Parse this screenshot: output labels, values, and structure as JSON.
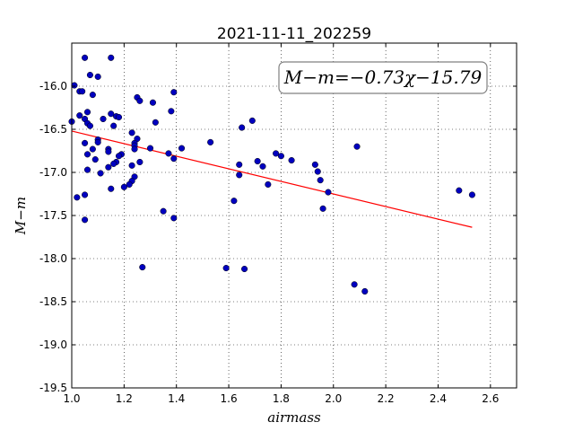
{
  "chart_data": {
    "type": "scatter",
    "title": "2021-11-11_202259",
    "xlabel": "airmass",
    "ylabel": "M−m",
    "xlim": [
      1.0,
      2.7
    ],
    "ylim": [
      -19.5,
      -15.5
    ],
    "y_inverted": true,
    "grid": true,
    "x_ticks": [
      "1.0",
      "1.2",
      "1.4",
      "1.6",
      "1.8",
      "2.0",
      "2.2",
      "2.4",
      "2.6"
    ],
    "y_ticks": [
      "-16.0",
      "-16.5",
      "-17.0",
      "-17.5",
      "-18.0",
      "-18.5",
      "-19.0",
      "-19.5"
    ],
    "point_color": "#0000bf",
    "line_color": "#ff0000",
    "annotation": "M−m=−0.73χ−15.79",
    "fit": {
      "slope": -0.73,
      "intercept": -15.79,
      "x_range": [
        1.0,
        2.53
      ]
    },
    "points": [
      [
        1.05,
        -15.67
      ],
      [
        1.15,
        -15.67
      ],
      [
        1.07,
        -15.87
      ],
      [
        1.1,
        -15.89
      ],
      [
        1.01,
        -15.99
      ],
      [
        1.03,
        -16.06
      ],
      [
        1.04,
        -16.06
      ],
      [
        1.08,
        -16.1
      ],
      [
        1.39,
        -16.07
      ],
      [
        1.25,
        -16.13
      ],
      [
        1.26,
        -16.17
      ],
      [
        1.31,
        -16.19
      ],
      [
        1.38,
        -16.29
      ],
      [
        1.06,
        -16.3
      ],
      [
        1.15,
        -16.32
      ],
      [
        1.03,
        -16.34
      ],
      [
        1.17,
        -16.35
      ],
      [
        1.18,
        -16.36
      ],
      [
        1.12,
        -16.38
      ],
      [
        1.69,
        -16.4
      ],
      [
        1.0,
        -16.41
      ],
      [
        1.05,
        -16.38
      ],
      [
        1.06,
        -16.43
      ],
      [
        1.07,
        -16.46
      ],
      [
        1.32,
        -16.42
      ],
      [
        1.16,
        -16.46
      ],
      [
        1.65,
        -16.48
      ],
      [
        1.23,
        -16.54
      ],
      [
        1.1,
        -16.62
      ],
      [
        1.1,
        -16.65
      ],
      [
        1.05,
        -16.66
      ],
      [
        1.25,
        -16.61
      ],
      [
        1.24,
        -16.66
      ],
      [
        1.24,
        -16.69
      ],
      [
        1.3,
        -16.72
      ],
      [
        1.42,
        -16.72
      ],
      [
        1.53,
        -16.65
      ],
      [
        2.09,
        -16.7
      ],
      [
        1.08,
        -16.73
      ],
      [
        1.14,
        -16.73
      ],
      [
        1.14,
        -16.76
      ],
      [
        1.24,
        -16.73
      ],
      [
        1.06,
        -16.79
      ],
      [
        1.19,
        -16.79
      ],
      [
        1.18,
        -16.81
      ],
      [
        1.37,
        -16.78
      ],
      [
        1.39,
        -16.84
      ],
      [
        1.09,
        -16.85
      ],
      [
        1.26,
        -16.88
      ],
      [
        1.17,
        -16.88
      ],
      [
        1.16,
        -16.9
      ],
      [
        1.23,
        -16.92
      ],
      [
        1.14,
        -16.94
      ],
      [
        1.71,
        -16.87
      ],
      [
        1.73,
        -16.93
      ],
      [
        1.64,
        -16.91
      ],
      [
        1.78,
        -16.78
      ],
      [
        1.8,
        -16.81
      ],
      [
        1.84,
        -16.86
      ],
      [
        1.93,
        -16.91
      ],
      [
        1.06,
        -16.97
      ],
      [
        1.11,
        -17.01
      ],
      [
        1.24,
        -17.05
      ],
      [
        1.64,
        -17.03
      ],
      [
        1.94,
        -16.99
      ],
      [
        1.95,
        -17.09
      ],
      [
        1.23,
        -17.1
      ],
      [
        1.22,
        -17.14
      ],
      [
        1.75,
        -17.14
      ],
      [
        1.15,
        -17.19
      ],
      [
        1.2,
        -17.17
      ],
      [
        1.98,
        -17.23
      ],
      [
        2.48,
        -17.21
      ],
      [
        2.53,
        -17.26
      ],
      [
        1.05,
        -17.26
      ],
      [
        1.02,
        -17.29
      ],
      [
        1.62,
        -17.33
      ],
      [
        1.96,
        -17.42
      ],
      [
        1.35,
        -17.45
      ],
      [
        1.39,
        -17.53
      ],
      [
        1.05,
        -17.55
      ],
      [
        1.27,
        -18.1
      ],
      [
        1.59,
        -18.11
      ],
      [
        1.66,
        -18.12
      ],
      [
        2.08,
        -18.3
      ],
      [
        2.12,
        -18.38
      ]
    ]
  }
}
